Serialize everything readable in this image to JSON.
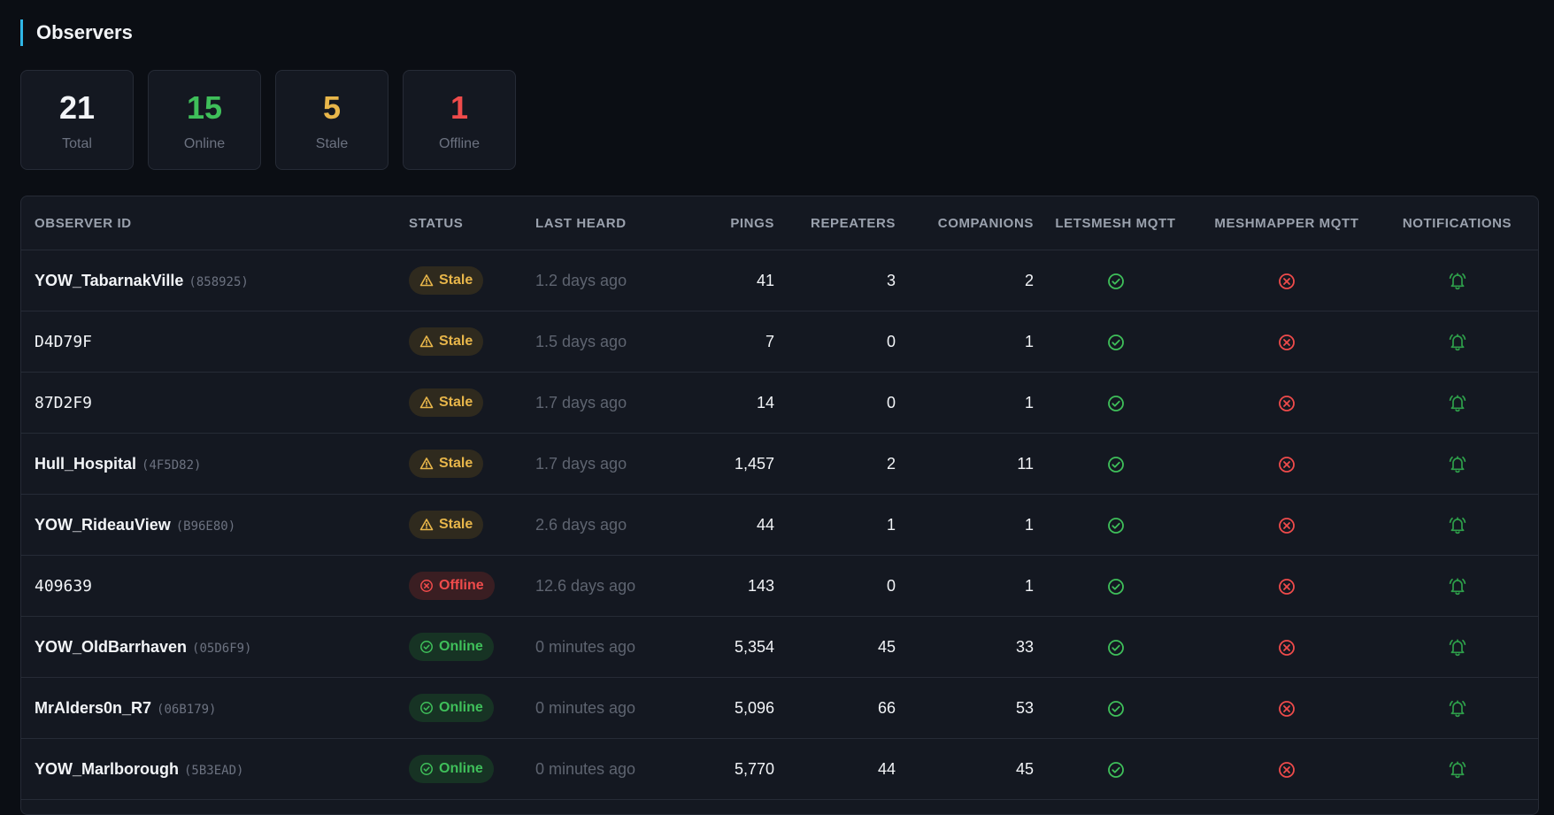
{
  "page": {
    "title": "Observers"
  },
  "stats": [
    {
      "value": "21",
      "label": "Total",
      "color": "#f2f4f7"
    },
    {
      "value": "15",
      "label": "Online",
      "color": "#3fbf5a"
    },
    {
      "value": "5",
      "label": "Stale",
      "color": "#e8b64a"
    },
    {
      "value": "1",
      "label": "Offline",
      "color": "#ef4b4b"
    }
  ],
  "table": {
    "headers": {
      "observer_id": "OBSERVER ID",
      "status": "STATUS",
      "last_heard": "LAST HEARD",
      "pings": "PINGS",
      "repeaters": "REPEATERS",
      "companions": "COMPANIONS",
      "letsmesh": "LETSMESH MQTT",
      "meshmapper": "MESHMAPPER MQTT",
      "notifications": "NOTIFICATIONS"
    },
    "rows": [
      {
        "name": "YOW_TabarnakVille",
        "id": "(858925)",
        "status": "Stale",
        "last_heard": "1.2 days ago",
        "pings": "41",
        "repeaters": "3",
        "companions": "2",
        "letsmesh": "ok-icon",
        "meshmapper": "error-icon"
      },
      {
        "name": "D4D79F",
        "id": "",
        "status": "Stale",
        "last_heard": "1.5 days ago",
        "pings": "7",
        "repeaters": "0",
        "companions": "1",
        "letsmesh": "ok-icon",
        "meshmapper": "error-icon"
      },
      {
        "name": "87D2F9",
        "id": "",
        "status": "Stale",
        "last_heard": "1.7 days ago",
        "pings": "14",
        "repeaters": "0",
        "companions": "1",
        "letsmesh": "ok-icon",
        "meshmapper": "error-icon"
      },
      {
        "name": "Hull_Hospital",
        "id": "(4F5D82)",
        "status": "Stale",
        "last_heard": "1.7 days ago",
        "pings": "1,457",
        "repeaters": "2",
        "companions": "11",
        "letsmesh": "ok-icon",
        "meshmapper": "error-icon"
      },
      {
        "name": "YOW_RideauView",
        "id": "(B96E80)",
        "status": "Stale",
        "last_heard": "2.6 days ago",
        "pings": "44",
        "repeaters": "1",
        "companions": "1",
        "letsmesh": "ok-icon",
        "meshmapper": "error-icon"
      },
      {
        "name": "409639",
        "id": "",
        "status": "Offline",
        "last_heard": "12.6 days ago",
        "pings": "143",
        "repeaters": "0",
        "companions": "1",
        "letsmesh": "ok-icon",
        "meshmapper": "error-icon"
      },
      {
        "name": "YOW_OldBarrhaven",
        "id": "(05D6F9)",
        "status": "Online",
        "last_heard": "0 minutes ago",
        "pings": "5,354",
        "repeaters": "45",
        "companions": "33",
        "letsmesh": "ok-icon",
        "meshmapper": "error-icon"
      },
      {
        "name": "MrAlders0n_R7",
        "id": "(06B179)",
        "status": "Online",
        "last_heard": "0 minutes ago",
        "pings": "5,096",
        "repeaters": "66",
        "companions": "53",
        "letsmesh": "ok-icon",
        "meshmapper": "error-icon"
      },
      {
        "name": "YOW_Marlborough",
        "id": "(5B3EAD)",
        "status": "Online",
        "last_heard": "0 minutes ago",
        "pings": "5,770",
        "repeaters": "44",
        "companions": "45",
        "letsmesh": "ok-icon",
        "meshmapper": "error-icon"
      }
    ]
  },
  "colors": {
    "accent": "#2fb6e6",
    "ok": "#3fbf5a",
    "warn": "#e8b64a",
    "error": "#ef4b4b"
  },
  "icons": {
    "notification": "bell-ringing-icon"
  }
}
